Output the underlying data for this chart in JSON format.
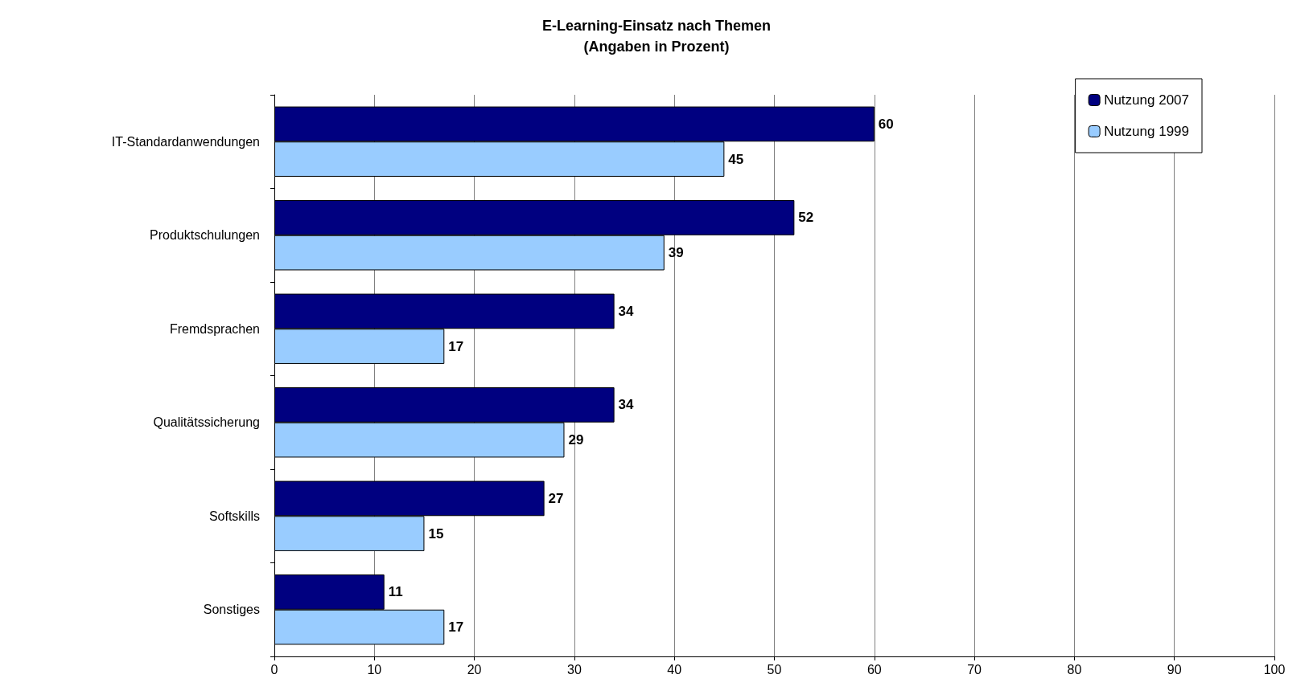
{
  "chart_data": {
    "type": "bar",
    "orientation": "horizontal",
    "title": "E-Learning-Einsatz nach Themen",
    "subtitle": "(Angaben in Prozent)",
    "categories": [
      "IT-Standardanwendungen",
      "Produktschulungen",
      "Fremdsprachen",
      "Qualitätssicherung",
      "Softskills",
      "Sonstiges"
    ],
    "series": [
      {
        "name": "Nutzung 2007",
        "color": "#000080",
        "values": [
          60,
          52,
          34,
          34,
          27,
          11
        ]
      },
      {
        "name": "Nutzung 1999",
        "color": "#99ccff",
        "values": [
          45,
          39,
          17,
          29,
          15,
          17
        ]
      }
    ],
    "xlim": [
      0,
      100
    ],
    "xticks": [
      0,
      10,
      20,
      30,
      40,
      50,
      60,
      70,
      80,
      90,
      100
    ],
    "grid": "x",
    "legend": "top right",
    "data_labels": true
  }
}
